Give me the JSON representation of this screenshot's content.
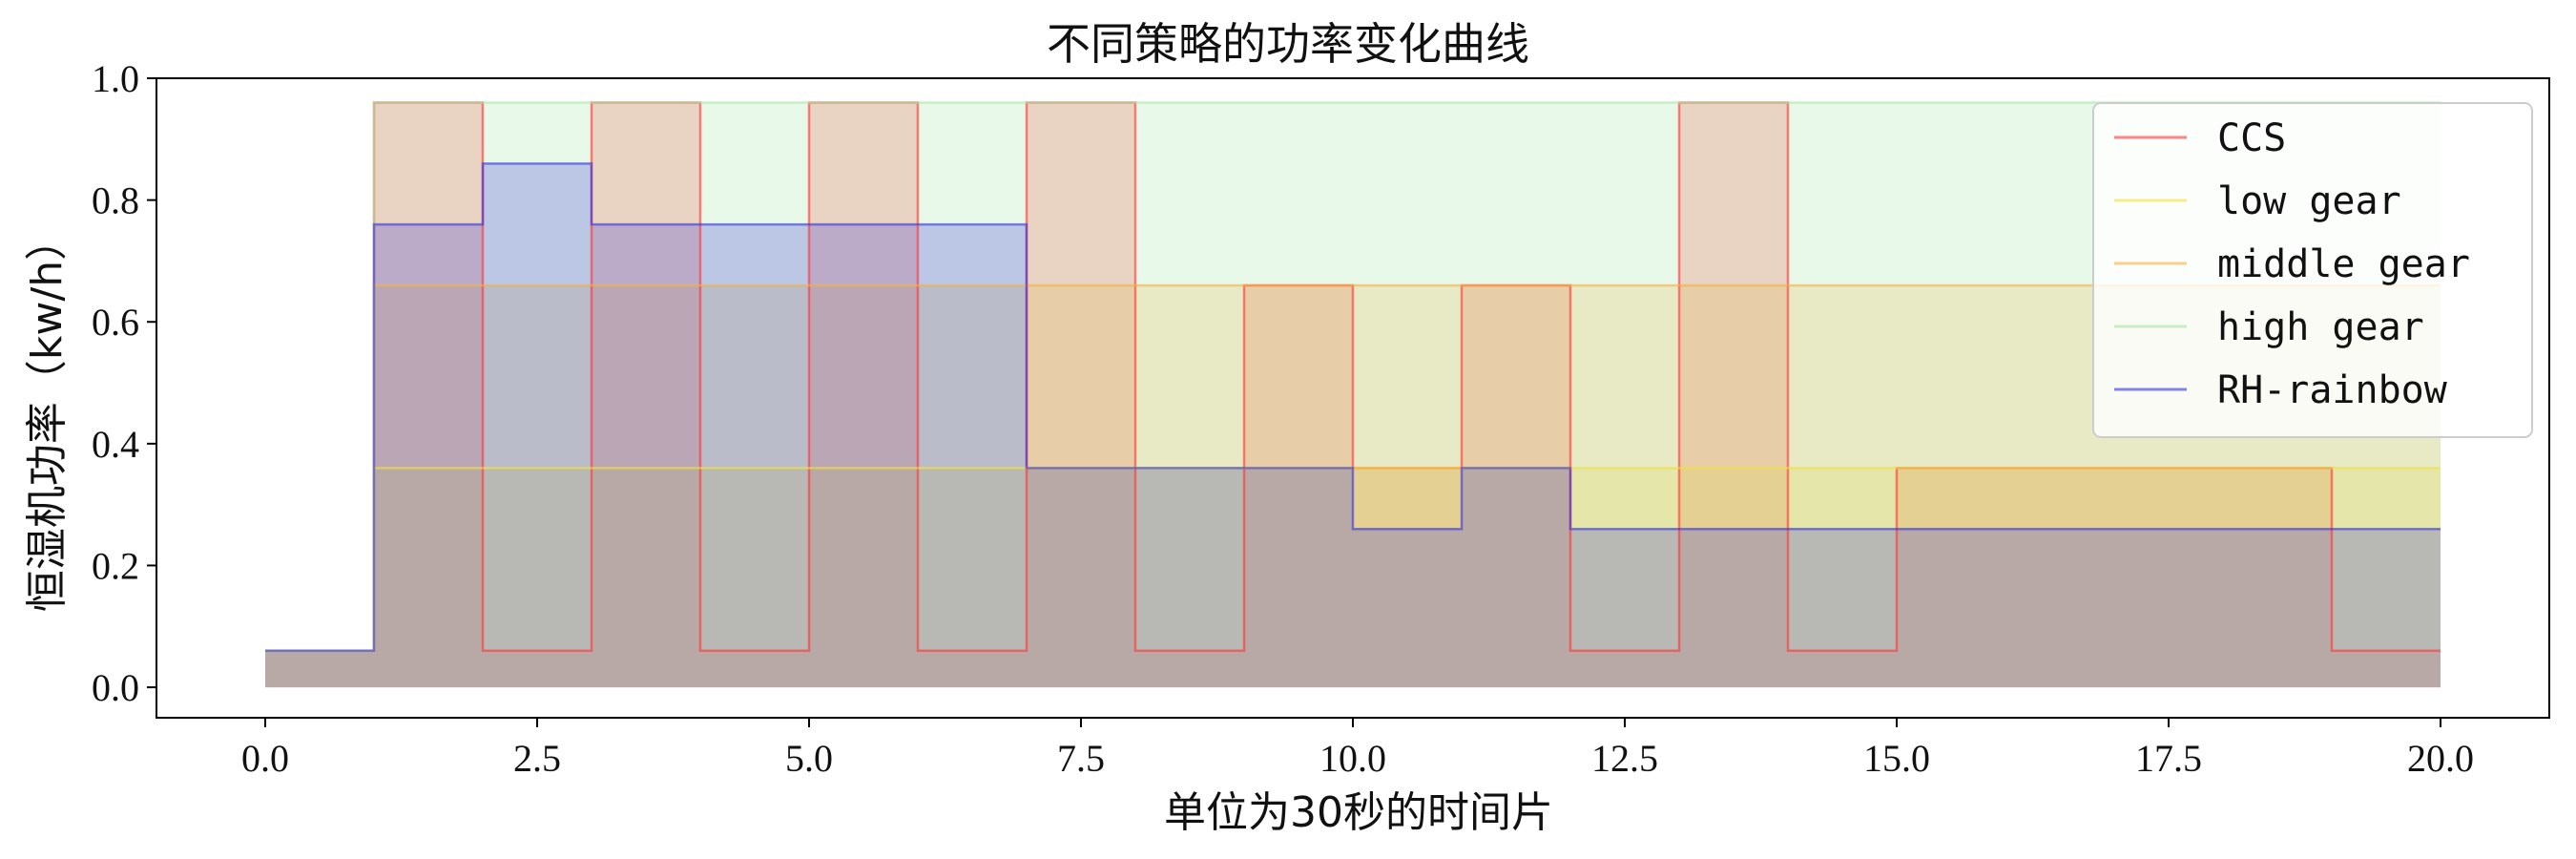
{
  "chart_data": {
    "type": "area",
    "step": "post",
    "title": "不同策略的功率变化曲线",
    "xlabel": "单位为30秒的时间片",
    "ylabel": "恒湿机功率（kw/h）",
    "xlim": [
      -1,
      21
    ],
    "ylim": [
      -0.05,
      1.0
    ],
    "xticks": [
      0,
      2.5,
      5,
      7.5,
      10,
      12.5,
      15,
      17.5,
      20
    ],
    "xtick_labels": [
      "0.0",
      "2.5",
      "5.0",
      "7.5",
      "10.0",
      "12.5",
      "15.0",
      "17.5",
      "20.0"
    ],
    "yticks": [
      0,
      0.2,
      0.4,
      0.6,
      0.8,
      1.0
    ],
    "ytick_labels": [
      "0.0",
      "0.2",
      "0.4",
      "0.6",
      "0.8",
      "1.0"
    ],
    "grid": false,
    "legend_position": "upper-right",
    "x": [
      0,
      1,
      2,
      3,
      4,
      5,
      6,
      7,
      8,
      9,
      10,
      11,
      12,
      13,
      14,
      15,
      16,
      17,
      18,
      19,
      20
    ],
    "series": [
      {
        "name": "CCS",
        "color": "#ff3333",
        "values": [
          0.06,
          0.96,
          0.06,
          0.96,
          0.06,
          0.96,
          0.06,
          0.96,
          0.06,
          0.66,
          0.36,
          0.66,
          0.06,
          0.96,
          0.06,
          0.36,
          0.36,
          0.36,
          0.36,
          0.06,
          0.06
        ]
      },
      {
        "name": "low gear",
        "color": "#f2e33a",
        "values": [
          0.06,
          0.36,
          0.36,
          0.36,
          0.36,
          0.36,
          0.36,
          0.36,
          0.36,
          0.36,
          0.36,
          0.36,
          0.36,
          0.36,
          0.36,
          0.36,
          0.36,
          0.36,
          0.36,
          0.36,
          0.36
        ]
      },
      {
        "name": "middle gear",
        "color": "#f5b041",
        "values": [
          0.06,
          0.66,
          0.66,
          0.66,
          0.66,
          0.66,
          0.66,
          0.66,
          0.66,
          0.66,
          0.66,
          0.66,
          0.66,
          0.66,
          0.66,
          0.66,
          0.66,
          0.66,
          0.66,
          0.66,
          0.66
        ]
      },
      {
        "name": "high gear",
        "color": "#a8e6a8",
        "values": [
          0.06,
          0.96,
          0.96,
          0.96,
          0.96,
          0.96,
          0.96,
          0.96,
          0.96,
          0.96,
          0.96,
          0.96,
          0.96,
          0.96,
          0.96,
          0.96,
          0.96,
          0.96,
          0.96,
          0.96,
          0.96
        ]
      },
      {
        "name": "RH-rainbow",
        "color": "#3333dd",
        "values": [
          0.06,
          0.76,
          0.86,
          0.76,
          0.76,
          0.76,
          0.76,
          0.36,
          0.36,
          0.36,
          0.26,
          0.36,
          0.26,
          0.26,
          0.26,
          0.26,
          0.26,
          0.26,
          0.26,
          0.26,
          0.26
        ]
      }
    ]
  }
}
